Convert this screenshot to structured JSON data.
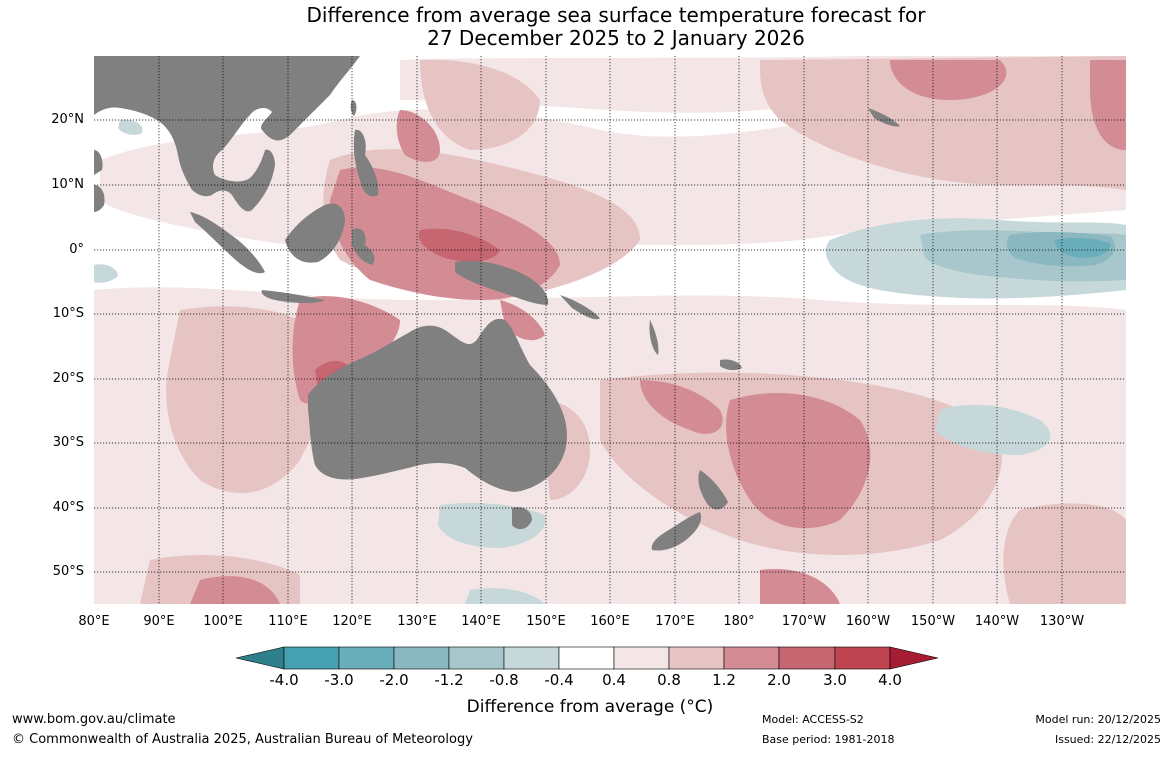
{
  "title": {
    "line1": "Difference from average sea surface temperature forecast for",
    "line2": "27 December 2025 to 2 January 2026"
  },
  "map": {
    "latitudes": [
      "20°N",
      "10°N",
      "0°",
      "10°S",
      "20°S",
      "30°S",
      "40°S",
      "50°S"
    ],
    "longitudes": [
      "80°E",
      "90°E",
      "100°E",
      "110°E",
      "120°E",
      "130°E",
      "140°E",
      "150°E",
      "160°E",
      "170°E",
      "180°",
      "170°W",
      "160°W",
      "150°W",
      "140°W",
      "130°W"
    ],
    "land_color": "#808080",
    "ocean_neutral_color": "#ffffff"
  },
  "colorbar": {
    "ticks": [
      "-4.0",
      "-3.0",
      "-2.0",
      "-1.2",
      "-0.8",
      "-0.4",
      "0.4",
      "0.8",
      "1.2",
      "2.0",
      "3.0",
      "4.0"
    ],
    "colors": [
      "#2e7f8a",
      "#45a1b2",
      "#6aaebb",
      "#8ab7c0",
      "#a8c7cc",
      "#c6d8da",
      "#ffffff",
      "#f4e6e6",
      "#e6c4c4",
      "#d38c94",
      "#c56670",
      "#bf4451",
      "#a51c33"
    ],
    "title": "Difference from average (°C)"
  },
  "footer": {
    "url": "www.bom.gov.au/climate",
    "copyright": "© Commonwealth of Australia 2025, Australian Bureau of Meteorology",
    "model": "Model: ACCESS-S2",
    "base_period": "Base period: 1981-2018",
    "model_run": "Model run: 20/12/2025",
    "issued": "Issued: 22/12/2025"
  }
}
